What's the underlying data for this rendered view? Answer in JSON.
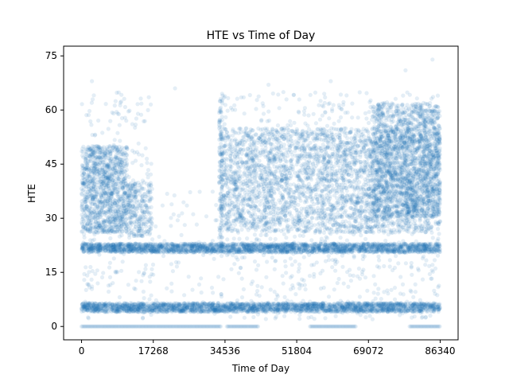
{
  "chart_data": {
    "type": "scatter",
    "title": "HTE vs Time of Day",
    "xlabel": "Time of Day",
    "ylabel": "HTE",
    "xlim": [
      -4317,
      90657
    ],
    "ylim": [
      -3.7,
      77.7
    ],
    "xticks": [
      0,
      17268,
      34536,
      51804,
      69072,
      86340
    ],
    "yticks": [
      0,
      15,
      30,
      45,
      60,
      75
    ],
    "grid": false,
    "legend": "none",
    "marker": "circle",
    "point_alpha": 0.12,
    "colors": {
      "point": "#1f77b4",
      "axis": "#000000",
      "background": "#ffffff"
    },
    "clusters": [
      {
        "x_range": [
          0,
          11000
        ],
        "y_range": [
          26,
          50
        ]
      },
      {
        "x_range": [
          11000,
          17000
        ],
        "y_range": [
          25,
          40
        ]
      },
      {
        "x_range": [
          33500,
          86340
        ],
        "y_range": [
          26,
          55
        ]
      },
      {
        "x_range": [
          70000,
          86340
        ],
        "y_range": [
          30,
          62
        ]
      },
      {
        "x_range": [
          0,
          86340
        ],
        "y_range": [
          20.5,
          23
        ]
      },
      {
        "x_range": [
          0,
          86340
        ],
        "y_range": [
          4,
          6.5
        ]
      }
    ],
    "zero_band_segments": [
      [
        0,
        33500
      ],
      [
        35000,
        42500
      ],
      [
        55000,
        66000
      ],
      [
        79000,
        86340
      ]
    ],
    "vertical_streak": {
      "x": 33500,
      "y_range": [
        22,
        63
      ]
    },
    "sample_points": [
      {
        "x": 84500,
        "y": 74
      },
      {
        "x": 22500,
        "y": 66
      },
      {
        "x": 2500,
        "y": 68
      },
      {
        "x": 78000,
        "y": 71
      },
      {
        "x": 60000,
        "y": 68
      },
      {
        "x": 45000,
        "y": 67
      }
    ]
  }
}
